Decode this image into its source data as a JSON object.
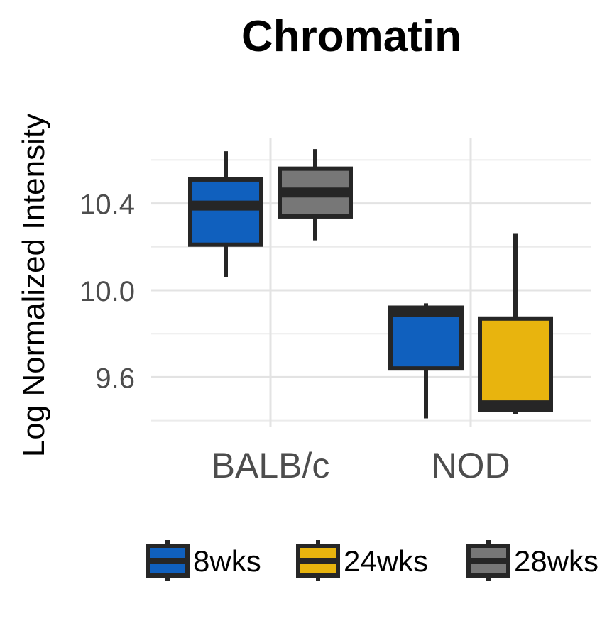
{
  "chart_data": {
    "type": "boxplot",
    "title": "Chromatin",
    "xlabel": "",
    "ylabel": "Log Normalized Intensity",
    "categories": [
      "BALB/c",
      "NOD"
    ],
    "ylim": [
      9.4,
      10.62
    ],
    "y_major_ticks": [
      9.6,
      10.0,
      10.4
    ],
    "y_tick_labels": [
      "9.6",
      "10.0",
      "10.4"
    ],
    "y_minor_gridlines": [
      9.4,
      9.8,
      10.2,
      10.6
    ],
    "grid": true,
    "legend_position": "bottom",
    "series": [
      {
        "name": "8wks",
        "color": "#1060BE",
        "boxes": [
          {
            "category": "BALB/c",
            "min": 10.06,
            "q1": 10.21,
            "median": 10.39,
            "q3": 10.51,
            "max": 10.64
          },
          {
            "category": "NOD",
            "min": 9.41,
            "q1": 9.64,
            "median": 9.9,
            "q3": 9.92,
            "max": 9.94
          }
        ]
      },
      {
        "name": "24wks",
        "color": "#E8B40E",
        "boxes": [
          {
            "category": "NOD",
            "min": 9.43,
            "q1": 9.45,
            "median": 9.47,
            "q3": 9.87,
            "max": 10.26
          }
        ]
      },
      {
        "name": "28wks",
        "color": "#777777",
        "boxes": [
          {
            "category": "BALB/c",
            "min": 10.23,
            "q1": 10.34,
            "median": 10.45,
            "q3": 10.56,
            "max": 10.65
          }
        ]
      }
    ]
  }
}
